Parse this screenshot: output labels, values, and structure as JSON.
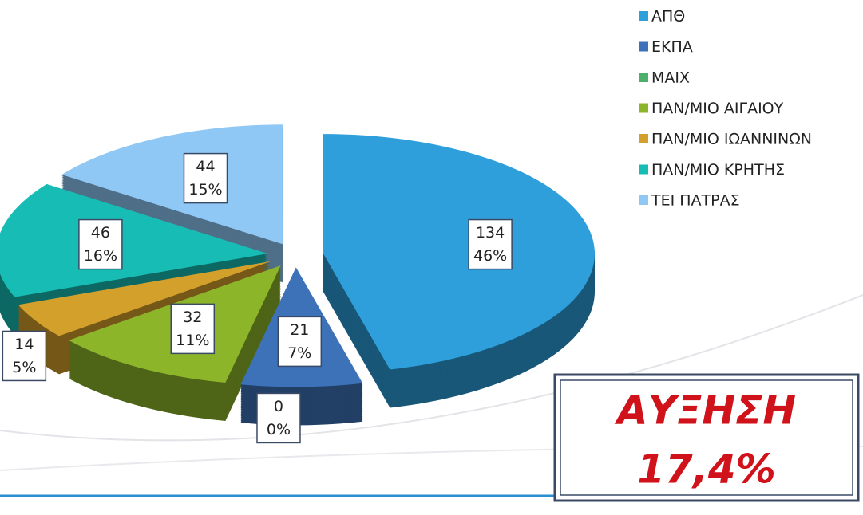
{
  "chart_data": {
    "type": "pie3d",
    "categories": [
      "ΑΠΘ",
      "ΕΚΠΑ",
      "ΜΑΙΧ",
      "ΠΑΝ/ΜΙΟ ΑΙΓΑΙΟΥ",
      "ΠΑΝ/ΜΙΟ ΙΩΑΝΝΙΝΩΝ",
      "ΠΑΝ/ΜΙΟ ΚΡΗΤΗΣ",
      "ΤΕΙ ΠΑΤΡΑΣ"
    ],
    "values": [
      134,
      21,
      0,
      32,
      14,
      46,
      44
    ],
    "percent_labels": [
      "46%",
      "7%",
      "0%",
      "11%",
      "5%",
      "16%",
      "15%"
    ],
    "colors": [
      "#2e9fdb",
      "#3d72b8",
      "#4caf6a",
      "#8db52a",
      "#d4a02c",
      "#17bdb4",
      "#8fc8f5"
    ],
    "legend": "right",
    "annotations": [
      "ΑΥΞΗΣΗ",
      "17,4%"
    ]
  }
}
